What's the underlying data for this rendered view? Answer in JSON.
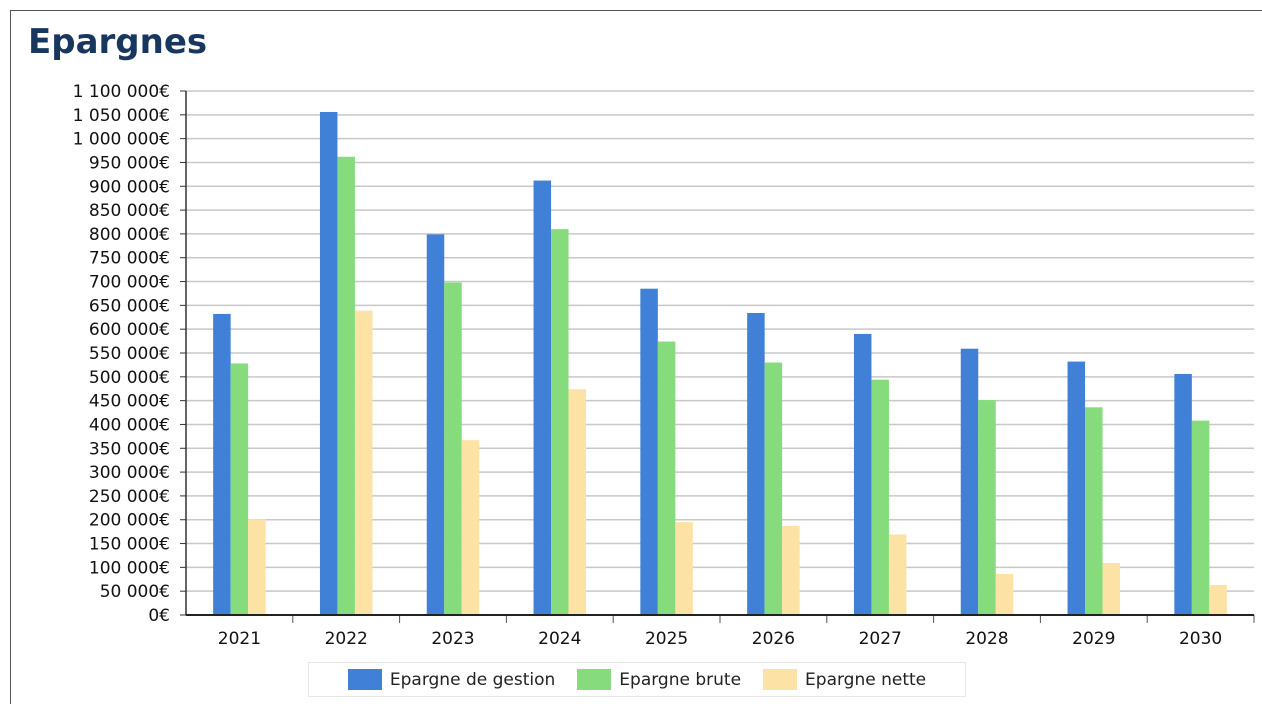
{
  "title": "Epargnes",
  "chart_data": {
    "type": "bar",
    "title": "Epargnes",
    "xlabel": "",
    "ylabel": "",
    "ylim": [
      0,
      1100000
    ],
    "ytick_step": 50000,
    "grid": true,
    "legend_position": "bottom",
    "categories": [
      "2021",
      "2022",
      "2023",
      "2024",
      "2025",
      "2026",
      "2027",
      "2028",
      "2029",
      "2030"
    ],
    "series": [
      {
        "name": "Epargne de gestion",
        "color": "#4080d6",
        "values": [
          632000,
          1056000,
          799000,
          912000,
          685000,
          634000,
          590000,
          559000,
          532000,
          506000
        ]
      },
      {
        "name": "Epargne brute",
        "color": "#86dc7c",
        "values": [
          528000,
          962000,
          698000,
          810000,
          574000,
          530000,
          494000,
          451000,
          436000,
          408000
        ]
      },
      {
        "name": "Epargne nette",
        "color": "#fde2a6",
        "values": [
          201000,
          639000,
          367000,
          474000,
          195000,
          187000,
          169000,
          86000,
          109000,
          63000
        ]
      }
    ]
  }
}
